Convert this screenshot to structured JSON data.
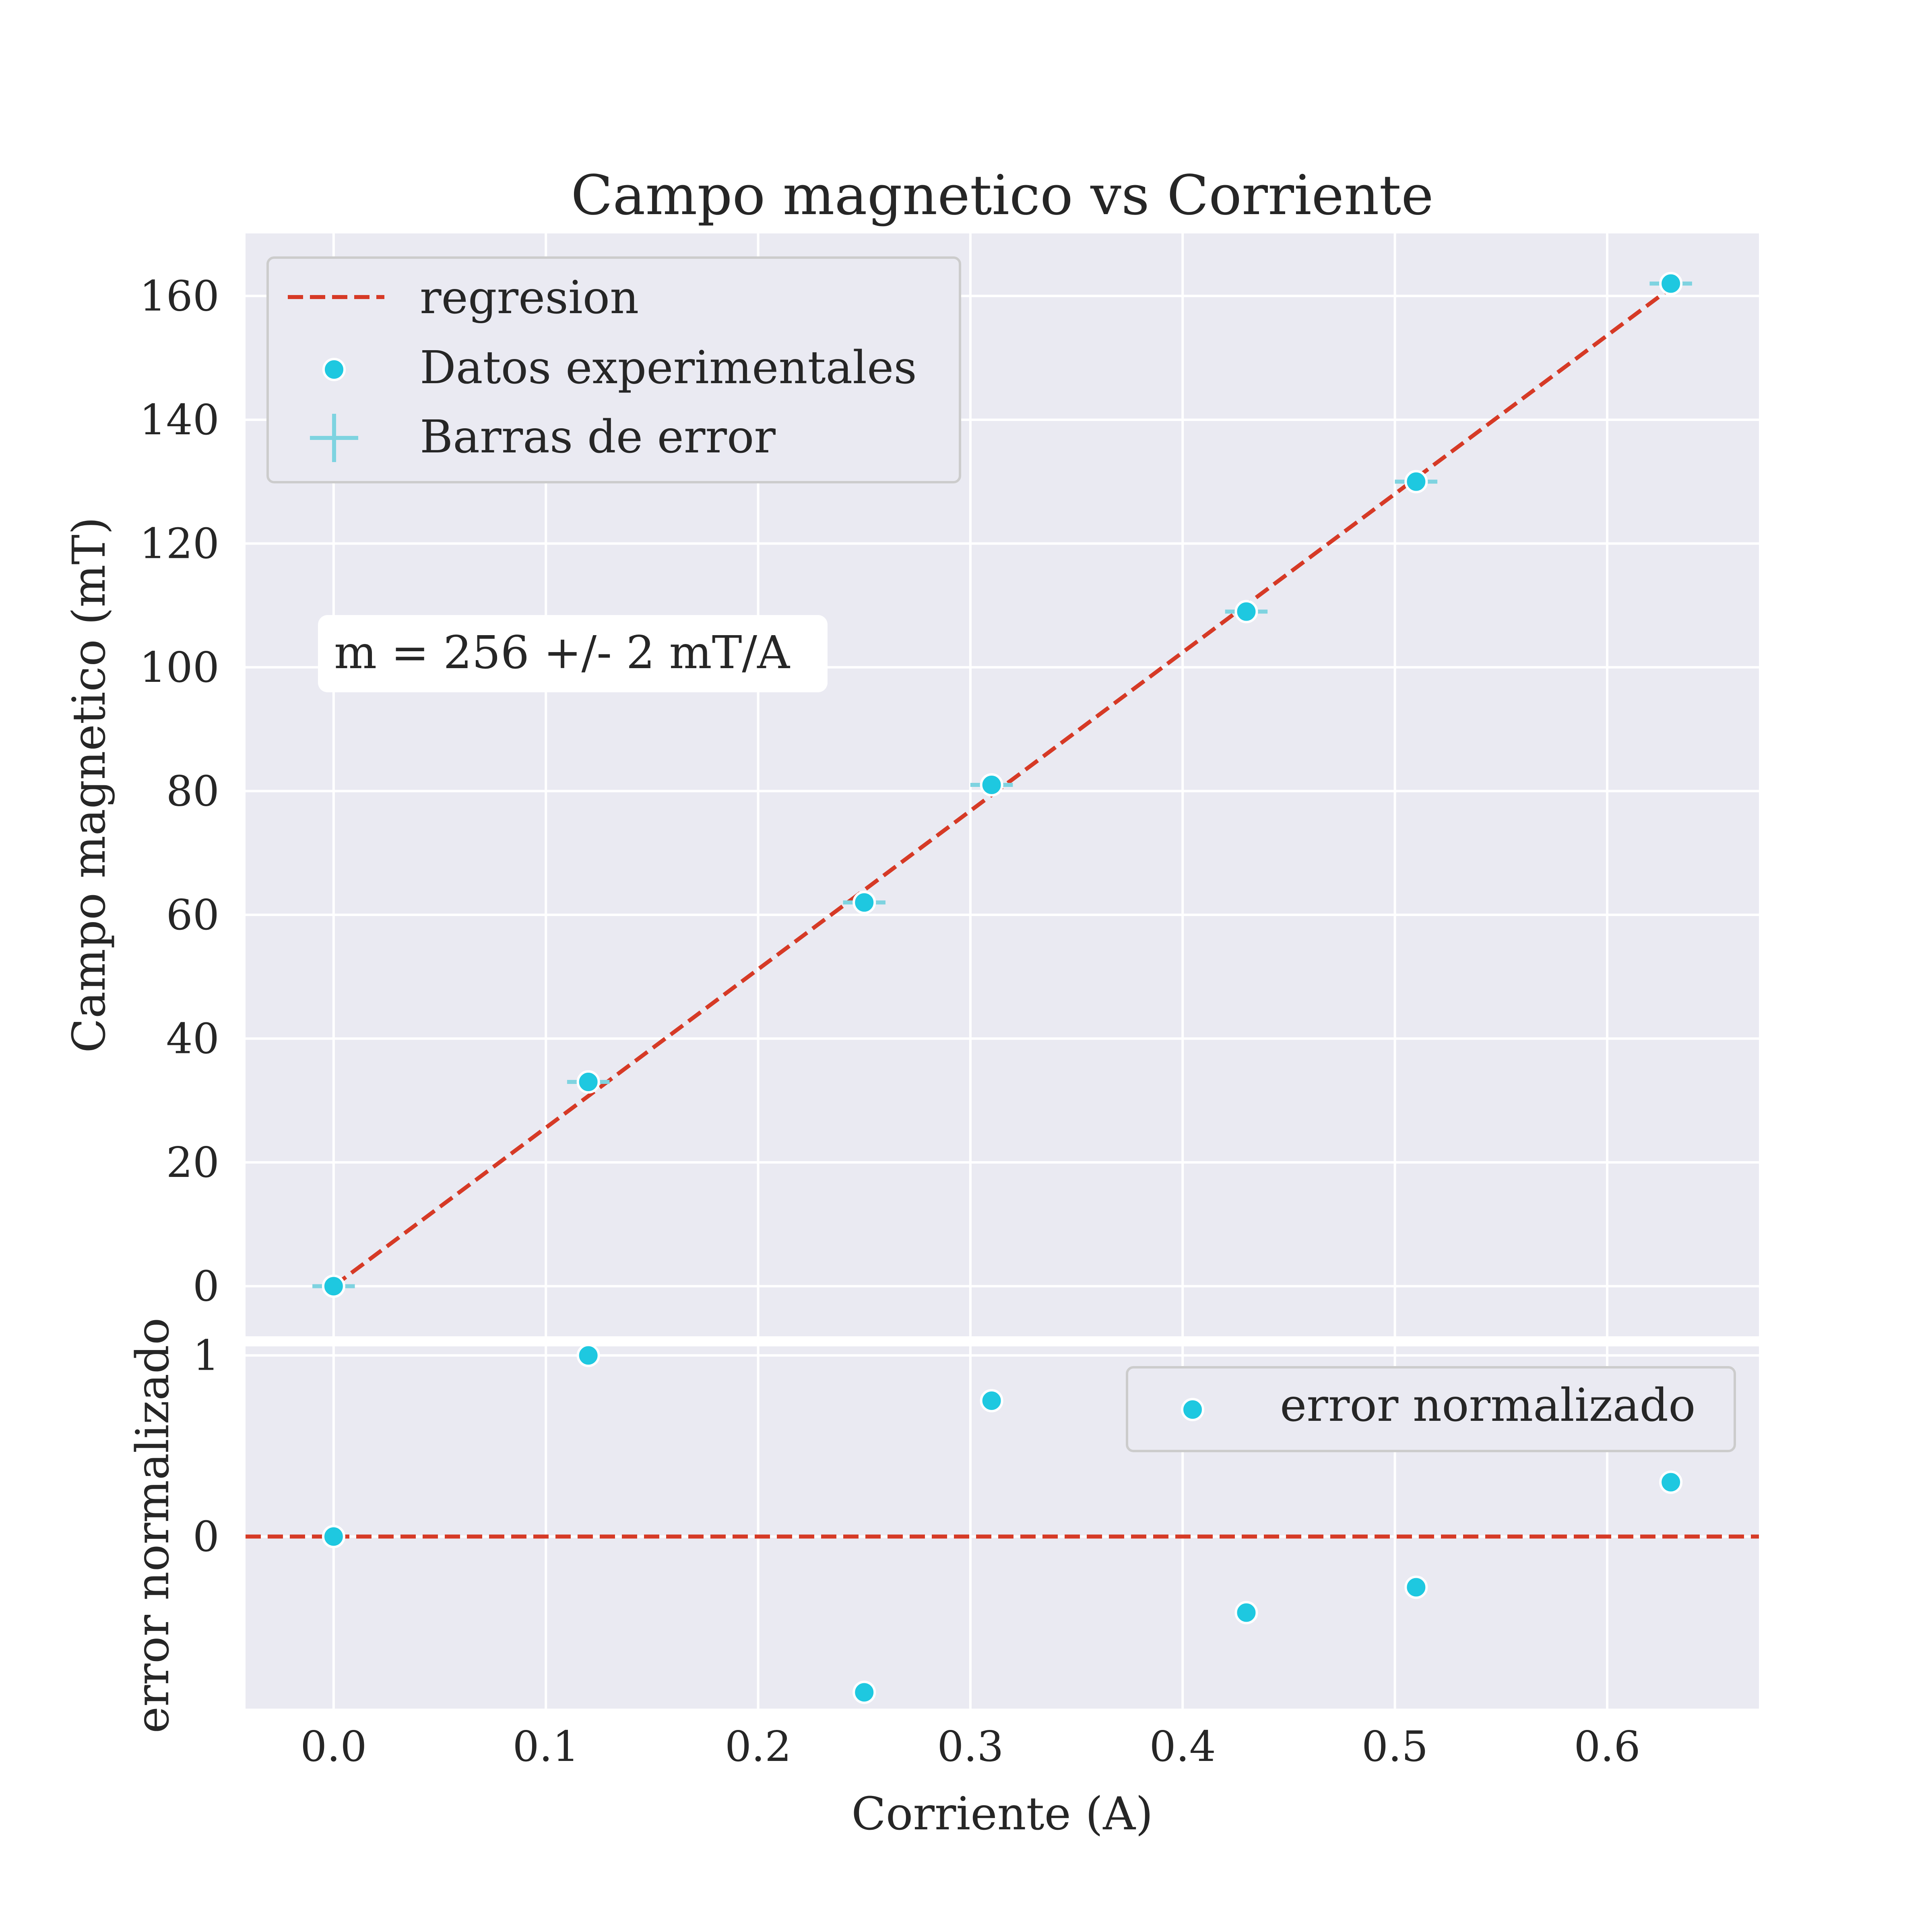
{
  "chart_data": [
    {
      "type": "scatter",
      "title": "Campo magnetico vs Corriente",
      "xlabel": "",
      "ylabel": "Campo magnetico (mT)",
      "xlim": [
        -0.0415,
        0.6715
      ],
      "ylim": [
        -8.1,
        170.1
      ],
      "grid": true,
      "legend_position": "top-left",
      "x_ticks": [
        "0.0",
        "0.1",
        "0.2",
        "0.3",
        "0.4",
        "0.5",
        "0.6"
      ],
      "y_ticks": [
        "0",
        "20",
        "40",
        "60",
        "80",
        "100",
        "120",
        "140",
        "160"
      ],
      "series": [
        {
          "name": "Datos experimentales",
          "kind": "points",
          "x": [
            0.0,
            0.12,
            0.25,
            0.31,
            0.43,
            0.51,
            0.63
          ],
          "y": [
            0,
            33,
            62,
            81,
            109,
            130,
            162
          ]
        },
        {
          "name": "Barras de error",
          "kind": "errorbars",
          "x": [
            0.0,
            0.12,
            0.25,
            0.31,
            0.43,
            0.51,
            0.63
          ],
          "y": [
            0,
            33,
            62,
            81,
            109,
            130,
            162
          ],
          "xerr": 0.01
        },
        {
          "name": "regresion",
          "kind": "line",
          "x": [
            0.0,
            0.63
          ],
          "y": [
            0,
            161.3
          ]
        }
      ],
      "annotation": "m = 256 +/- 2 mT/A",
      "colors": {
        "points": "#1ec8e0",
        "errorbars": "#7ed3e0",
        "regression": "#d63a26",
        "background": "#eaeaf2"
      }
    },
    {
      "type": "scatter",
      "title": "",
      "xlabel": "Corriente (A)",
      "ylabel": "error normalizado",
      "xlim": [
        -0.0415,
        0.6715
      ],
      "ylim": [
        -0.95,
        1.05
      ],
      "grid": true,
      "legend_position": "top-right",
      "x_ticks": [
        "0.0",
        "0.1",
        "0.2",
        "0.3",
        "0.4",
        "0.5",
        "0.6"
      ],
      "y_ticks": [
        "0",
        "1"
      ],
      "series": [
        {
          "name": "error normalizado",
          "kind": "points",
          "x": [
            0.0,
            0.12,
            0.25,
            0.31,
            0.43,
            0.51,
            0.63
          ],
          "y": [
            0,
            1.0,
            -0.86,
            0.75,
            -0.42,
            -0.28,
            0.3
          ]
        },
        {
          "name": "",
          "kind": "line",
          "x": [
            -0.0415,
            0.6715
          ],
          "y": [
            0,
            0
          ]
        }
      ],
      "colors": {
        "points": "#1ec8e0",
        "zero_line": "#d63a26",
        "background": "#eaeaf2"
      }
    }
  ]
}
